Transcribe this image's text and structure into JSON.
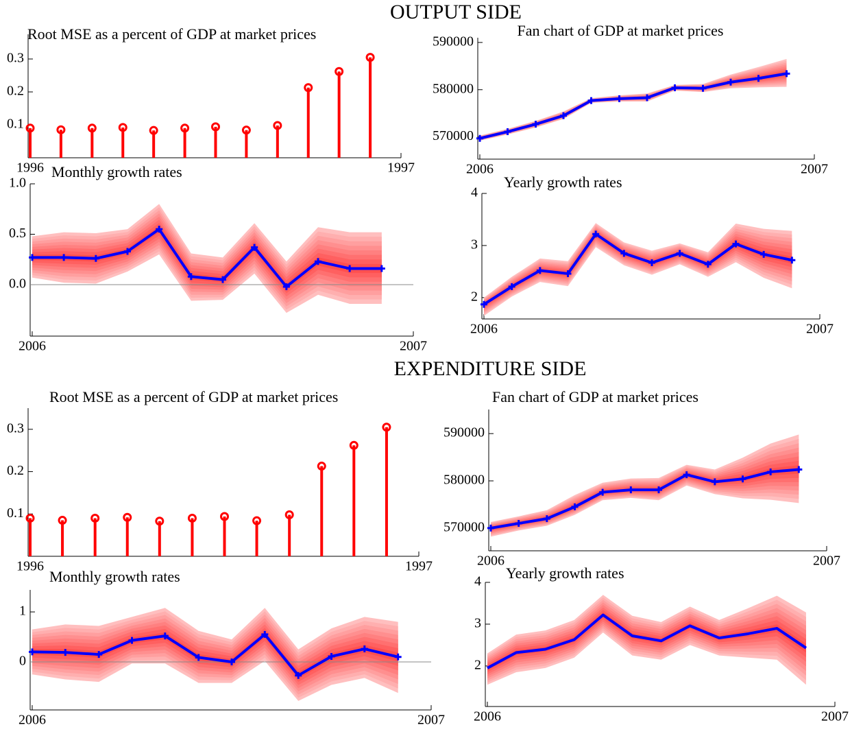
{
  "headings": [
    "OUTPUT SIDE",
    "EXPENDITURE SIDE"
  ],
  "chart_data": [
    {
      "type": "stem",
      "title": "Root MSE as a percent of GDP at market prices",
      "color": "#ff0000",
      "x": [
        1996,
        1996.083,
        1996.167,
        1996.25,
        1996.333,
        1996.417,
        1996.5,
        1996.583,
        1996.667,
        1996.75,
        1996.833,
        1996.917
      ],
      "values": [
        0.09,
        0.085,
        0.09,
        0.092,
        0.083,
        0.09,
        0.094,
        0.084,
        0.098,
        0.213,
        0.262,
        0.305
      ],
      "xlim": [
        1996,
        1997
      ],
      "xticks": [
        1996,
        1997
      ],
      "ylim": [
        0,
        0.375
      ],
      "yticks": [
        0.1,
        0.2,
        0.3
      ]
    },
    {
      "type": "fan",
      "title": "Fan chart of GDP at market prices",
      "color": "#0000ff",
      "fan_color": "#ff0000",
      "markers": true,
      "zero_line": false,
      "x": [
        2006,
        2006.083,
        2006.167,
        2006.25,
        2006.333,
        2006.417,
        2006.5,
        2006.583,
        2006.667,
        2006.75,
        2006.833,
        2006.917
      ],
      "values": [
        569700,
        571100,
        572700,
        574500,
        577700,
        578100,
        578300,
        580400,
        580300,
        581600,
        582400,
        583400
      ],
      "upper": [
        570300,
        571700,
        573400,
        575400,
        578200,
        578800,
        579200,
        581000,
        581200,
        583200,
        584800,
        586500
      ],
      "lower": [
        569200,
        570500,
        572000,
        573800,
        577200,
        577500,
        577500,
        579800,
        579500,
        580300,
        580500,
        580600
      ],
      "xlim": [
        2006,
        2007
      ],
      "xticks": [
        2006,
        2007
      ],
      "ylim": [
        565300,
        591000
      ],
      "yticks": [
        570000,
        580000,
        590000
      ]
    },
    {
      "type": "fan",
      "title": "Monthly growth rates",
      "color": "#0000ff",
      "fan_color": "#ff0000",
      "markers": true,
      "zero_line": true,
      "x": [
        2006,
        2006.083,
        2006.167,
        2006.25,
        2006.333,
        2006.417,
        2006.5,
        2006.583,
        2006.667,
        2006.75,
        2006.833,
        2006.917
      ],
      "values": [
        0.27,
        0.27,
        0.26,
        0.33,
        0.55,
        0.08,
        0.05,
        0.37,
        -0.02,
        0.23,
        0.16,
        0.16
      ],
      "upper": [
        0.48,
        0.52,
        0.51,
        0.55,
        0.8,
        0.31,
        0.27,
        0.61,
        0.23,
        0.57,
        0.52,
        0.52
      ],
      "lower": [
        0.07,
        0.02,
        0.01,
        0.13,
        0.3,
        -0.16,
        -0.15,
        0.11,
        -0.28,
        -0.1,
        -0.19,
        -0.19
      ],
      "xlim": [
        2006,
        2007
      ],
      "xticks": [
        2006,
        2007
      ],
      "ylim": [
        -0.51,
        1.0
      ],
      "yticks": [
        {
          "value": 0,
          "label": "0.0"
        },
        {
          "value": 0.5,
          "label": "0.5"
        },
        {
          "value": 1,
          "label": "1.0"
        }
      ]
    },
    {
      "type": "fan",
      "title": "Yearly growth rates",
      "color": "#0000ff",
      "fan_color": "#ff0000",
      "markers": true,
      "zero_line": false,
      "x": [
        2006,
        2006.083,
        2006.167,
        2006.25,
        2006.333,
        2006.417,
        2006.5,
        2006.583,
        2006.667,
        2006.75,
        2006.833,
        2006.917
      ],
      "values": [
        1.87,
        2.21,
        2.52,
        2.46,
        3.22,
        2.85,
        2.67,
        2.85,
        2.64,
        3.03,
        2.83,
        2.72
      ],
      "upper": [
        2.0,
        2.4,
        2.75,
        2.7,
        3.43,
        3.06,
        2.9,
        3.04,
        2.87,
        3.42,
        3.32,
        3.28
      ],
      "lower": [
        1.65,
        2.02,
        2.3,
        2.22,
        2.97,
        2.62,
        2.44,
        2.64,
        2.4,
        2.68,
        2.38,
        2.18
      ],
      "xlim": [
        2006,
        2007
      ],
      "xticks": [
        2006,
        2007
      ],
      "ylim": [
        1.59,
        4
      ],
      "yticks": [
        2,
        3,
        4
      ]
    },
    {
      "type": "stem",
      "title": "Root MSE as a percent of GDP at market prices",
      "color": "#ff0000",
      "x": [
        1996,
        1996.083,
        1996.167,
        1996.25,
        1996.333,
        1996.417,
        1996.5,
        1996.583,
        1996.667,
        1996.75,
        1996.833,
        1996.917
      ],
      "values": [
        0.09,
        0.085,
        0.09,
        0.092,
        0.083,
        0.09,
        0.094,
        0.084,
        0.098,
        0.213,
        0.262,
        0.305
      ],
      "xlim": [
        1996,
        1997
      ],
      "xticks": [
        1996,
        1997
      ],
      "ylim": [
        0,
        0.35
      ],
      "yticks": [
        0.1,
        0.2,
        0.3
      ]
    },
    {
      "type": "fan",
      "title": "Fan chart of GDP at market prices",
      "color": "#0000ff",
      "fan_color": "#ff0000",
      "markers": true,
      "zero_line": false,
      "x": [
        2006,
        2006.083,
        2006.167,
        2006.25,
        2006.333,
        2006.417,
        2006.5,
        2006.583,
        2006.667,
        2006.75,
        2006.833,
        2006.917
      ],
      "values": [
        570000,
        571000,
        572000,
        574500,
        577600,
        578100,
        578100,
        581300,
        579800,
        580400,
        581900,
        582400
      ],
      "upper": [
        571300,
        572500,
        573800,
        577000,
        579600,
        580500,
        580600,
        583400,
        582400,
        584900,
        587900,
        589800
      ],
      "lower": [
        568200,
        569500,
        570500,
        572800,
        575900,
        576400,
        575900,
        579000,
        577200,
        576300,
        576000,
        575300
      ],
      "xlim": [
        2006,
        2007
      ],
      "xticks": [
        2006,
        2007
      ],
      "ylim": [
        565200,
        595100
      ],
      "yticks": [
        570000,
        580000,
        590000
      ]
    },
    {
      "type": "fan",
      "title": "Monthly growth rates",
      "color": "#0000ff",
      "fan_color": "#ff0000",
      "markers": true,
      "zero_line": true,
      "x": [
        2006,
        2006.083,
        2006.167,
        2006.25,
        2006.333,
        2006.417,
        2006.5,
        2006.583,
        2006.667,
        2006.75,
        2006.833,
        2006.917
      ],
      "values": [
        0.2,
        0.19,
        0.15,
        0.43,
        0.52,
        0.09,
        0.0,
        0.55,
        -0.27,
        0.11,
        0.26,
        0.1
      ],
      "upper": [
        0.65,
        0.75,
        0.72,
        0.9,
        1.08,
        0.62,
        0.45,
        1.08,
        0.25,
        0.67,
        0.9,
        0.8
      ],
      "lower": [
        -0.25,
        -0.35,
        -0.4,
        -0.03,
        -0.03,
        -0.42,
        -0.42,
        0.02,
        -0.78,
        -0.46,
        -0.32,
        -0.62
      ],
      "xlim": [
        2006,
        2007
      ],
      "xticks": [
        2006,
        2007
      ],
      "ylim": [
        -0.96,
        1.44
      ],
      "yticks": [
        0,
        1
      ]
    },
    {
      "type": "fan",
      "title": "Yearly growth rates",
      "color": "#0000ff",
      "fan_color": "#ff0000",
      "markers": false,
      "zero_line": false,
      "x": [
        2006,
        2006.083,
        2006.167,
        2006.25,
        2006.333,
        2006.417,
        2006.5,
        2006.583,
        2006.667,
        2006.75,
        2006.833,
        2006.917
      ],
      "values": [
        1.95,
        2.32,
        2.4,
        2.63,
        3.22,
        2.72,
        2.6,
        2.96,
        2.67,
        2.77,
        2.9,
        2.43
      ],
      "upper": [
        2.3,
        2.75,
        2.85,
        3.1,
        3.7,
        3.2,
        3.05,
        3.42,
        3.1,
        3.38,
        3.68,
        3.28
      ],
      "lower": [
        1.55,
        1.85,
        1.95,
        2.2,
        2.8,
        2.25,
        2.15,
        2.5,
        2.25,
        2.2,
        2.15,
        1.55
      ],
      "xlim": [
        2006,
        2007
      ],
      "xticks": [
        2006,
        2007
      ],
      "ylim": [
        1.03,
        4
      ],
      "yticks": [
        2,
        3,
        4
      ]
    }
  ]
}
